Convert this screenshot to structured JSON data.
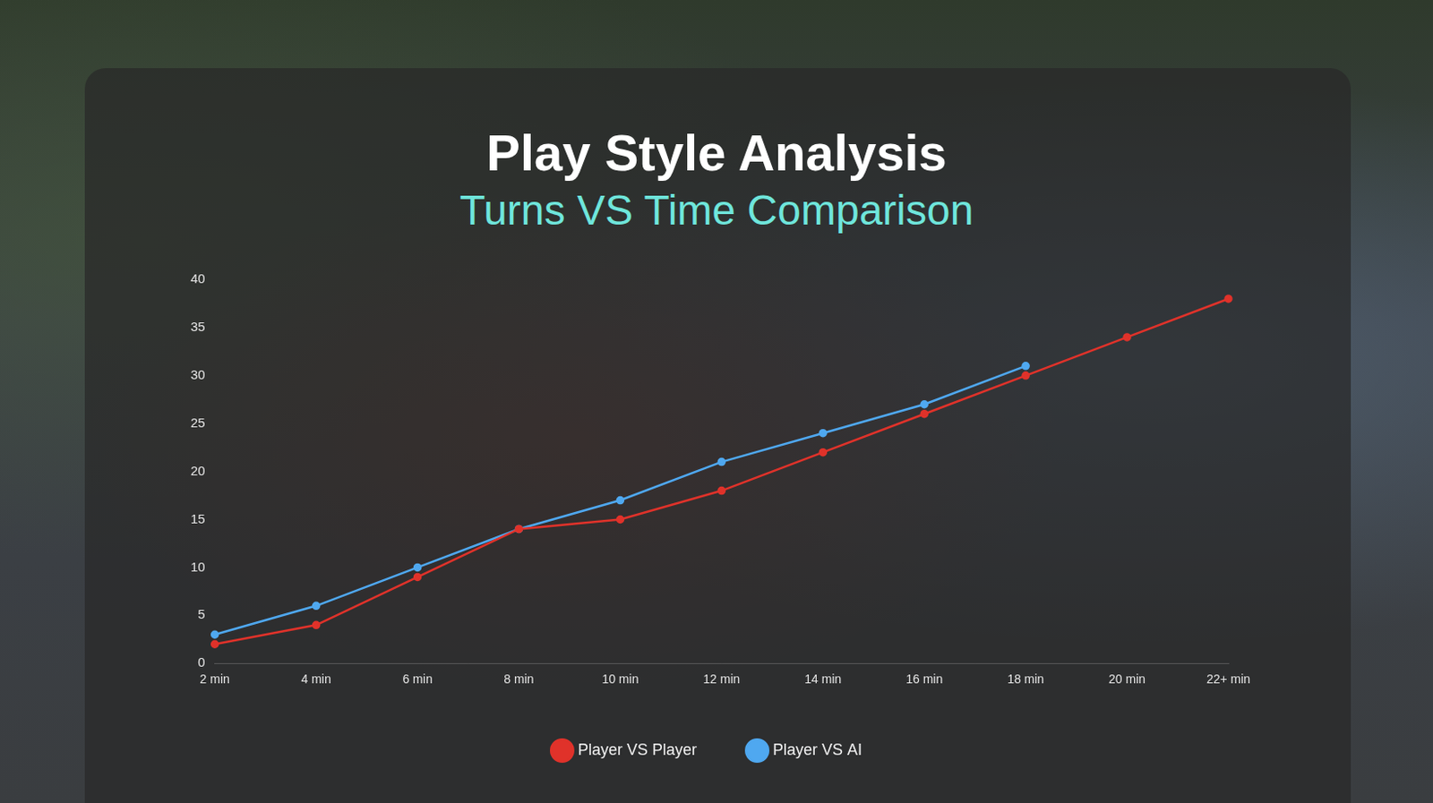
{
  "chart_data": {
    "type": "line",
    "title": "Play Style Analysis",
    "subtitle": "Turns VS Time Comparison",
    "categories": [
      "2 min",
      "4 min",
      "6 min",
      "8 min",
      "10 min",
      "12 min",
      "14 min",
      "16 min",
      "18 min",
      "20 min",
      "22+ min"
    ],
    "series": [
      {
        "name": "Player VS Player",
        "color": "#e0322a",
        "values": [
          2,
          4,
          9,
          14,
          15,
          18,
          22,
          26,
          30,
          34,
          38
        ]
      },
      {
        "name": "Player VS AI",
        "color": "#4fa8f0",
        "values": [
          3,
          6,
          10,
          14,
          17,
          21,
          24,
          27,
          31,
          null,
          null
        ]
      }
    ],
    "ylim": [
      0,
      40
    ],
    "yticks": [
      0,
      5,
      10,
      15,
      20,
      25,
      30,
      35,
      40
    ],
    "grid": false,
    "legend": "bottom",
    "marker": "circle"
  }
}
